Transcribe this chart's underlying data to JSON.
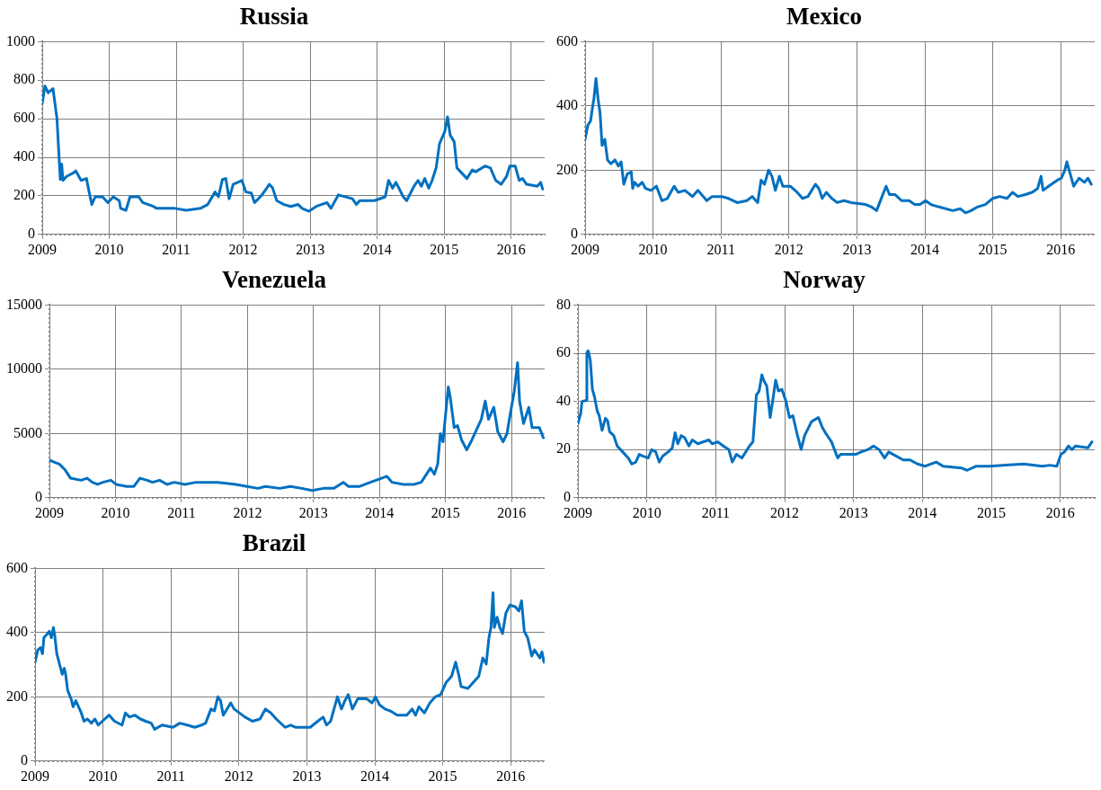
{
  "chart_data": [
    {
      "type": "line",
      "title": "Russia",
      "xlim": [
        2009,
        2016.5
      ],
      "xticks": [
        2009,
        2010,
        2011,
        2012,
        2013,
        2014,
        2015,
        2016
      ],
      "ylim": [
        0,
        1000
      ],
      "yticks": [
        0,
        200,
        400,
        600,
        800,
        1000
      ],
      "grid": true,
      "series": [
        {
          "color": "#0070c0",
          "x": [
            2009,
            2009.04,
            2009.09,
            2009.16,
            2009.22,
            2009.24,
            2009.27,
            2009.29,
            2009.31,
            2009.36,
            2009.47,
            2009.5,
            2009.58,
            2009.66,
            2009.7,
            2009.74,
            2009.79,
            2009.9,
            2009.98,
            2010.06,
            2010.15,
            2010.17,
            2010.25,
            2010.31,
            2010.44,
            2010.5,
            2010.66,
            2010.71,
            2010.82,
            2010.98,
            2011.15,
            2011.36,
            2011.47,
            2011.58,
            2011.63,
            2011.69,
            2011.74,
            2011.79,
            2011.85,
            2011.98,
            2012.04,
            2012.12,
            2012.17,
            2012.28,
            2012.39,
            2012.44,
            2012.5,
            2012.61,
            2012.71,
            2012.82,
            2012.88,
            2012.98,
            2013.09,
            2013.25,
            2013.31,
            2013.42,
            2013.63,
            2013.69,
            2013.74,
            2013.96,
            2014.12,
            2014.17,
            2014.23,
            2014.28,
            2014.39,
            2014.44,
            2014.55,
            2014.61,
            2014.66,
            2014.71,
            2014.77,
            2014.82,
            2014.88,
            2014.93,
            2015.01,
            2015.05,
            2015.09,
            2015.15,
            2015.19,
            2015.34,
            2015.42,
            2015.47,
            2015.61,
            2015.69,
            2015.77,
            2015.85,
            2015.93,
            2015.98,
            2016.06,
            2016.12,
            2016.17,
            2016.23,
            2016.39,
            2016.44,
            2016.47
          ],
          "values": [
            680,
            770,
            735,
            757,
            600,
            470,
            285,
            365,
            280,
            300,
            320,
            330,
            280,
            290,
            220,
            155,
            195,
            195,
            165,
            195,
            175,
            135,
            125,
            195,
            195,
            165,
            145,
            135,
            135,
            135,
            125,
            135,
            155,
            220,
            195,
            285,
            290,
            185,
            260,
            280,
            220,
            215,
            165,
            205,
            260,
            240,
            175,
            155,
            145,
            155,
            135,
            120,
            145,
            165,
            135,
            205,
            185,
            155,
            175,
            175,
            195,
            280,
            240,
            270,
            195,
            175,
            250,
            280,
            250,
            290,
            240,
            280,
            345,
            470,
            535,
            610,
            515,
            480,
            345,
            290,
            335,
            325,
            355,
            345,
            280,
            260,
            300,
            355,
            355,
            280,
            290,
            260,
            250,
            270,
            235
          ]
        }
      ]
    },
    {
      "type": "line",
      "title": "Mexico",
      "xlim": [
        2009,
        2016.5
      ],
      "xticks": [
        2009,
        2010,
        2011,
        2012,
        2013,
        2014,
        2015,
        2016
      ],
      "ylim": [
        0,
        600
      ],
      "yticks": [
        0,
        200,
        400,
        600
      ],
      "grid": true,
      "series": [
        {
          "color": "#0070c0",
          "x": [
            2009,
            2009.04,
            2009.08,
            2009.11,
            2009.13,
            2009.16,
            2009.19,
            2009.22,
            2009.25,
            2009.29,
            2009.33,
            2009.38,
            2009.44,
            2009.49,
            2009.53,
            2009.57,
            2009.62,
            2009.68,
            2009.7,
            2009.73,
            2009.78,
            2009.84,
            2009.89,
            2009.97,
            2010.05,
            2010.13,
            2010.21,
            2010.31,
            2010.37,
            2010.47,
            2010.58,
            2010.66,
            2010.74,
            2010.79,
            2010.87,
            2011.01,
            2011.11,
            2011.24,
            2011.38,
            2011.46,
            2011.54,
            2011.59,
            2011.64,
            2011.7,
            2011.75,
            2011.8,
            2011.86,
            2011.91,
            2012.02,
            2012.12,
            2012.2,
            2012.28,
            2012.39,
            2012.44,
            2012.49,
            2012.55,
            2012.63,
            2012.71,
            2012.81,
            2012.92,
            2013.13,
            2013.21,
            2013.29,
            2013.37,
            2013.43,
            2013.48,
            2013.56,
            2013.66,
            2013.77,
            2013.85,
            2013.93,
            2014.01,
            2014.09,
            2014.2,
            2014.41,
            2014.52,
            2014.6,
            2014.68,
            2014.78,
            2014.89,
            2015,
            2015.1,
            2015.21,
            2015.29,
            2015.37,
            2015.48,
            2015.58,
            2015.66,
            2015.71,
            2015.74,
            2015.82,
            2015.95,
            2016.01,
            2016.06,
            2016.09,
            2016.14,
            2016.19,
            2016.27,
            2016.35,
            2016.4,
            2016.45
          ],
          "values": [
            296,
            340,
            353,
            397,
            423,
            486,
            423,
            378,
            277,
            296,
            232,
            220,
            232,
            213,
            226,
            156,
            188,
            194,
            143,
            162,
            150,
            162,
            143,
            137,
            150,
            105,
            112,
            150,
            131,
            137,
            118,
            137,
            118,
            105,
            118,
            118,
            112,
            99,
            105,
            118,
            99,
            169,
            156,
            200,
            181,
            137,
            181,
            150,
            150,
            131,
            112,
            118,
            156,
            143,
            112,
            131,
            112,
            99,
            105,
            99,
            93,
            86,
            74,
            118,
            150,
            124,
            124,
            105,
            105,
            93,
            93,
            105,
            93,
            86,
            74,
            80,
            67,
            74,
            86,
            93,
            112,
            118,
            112,
            131,
            118,
            124,
            131,
            143,
            181,
            137,
            150,
            169,
            175,
            200,
            226,
            188,
            150,
            175,
            162,
            175,
            156
          ]
        }
      ]
    },
    {
      "type": "line",
      "title": "Venezuela",
      "xlim": [
        2009,
        2016.5
      ],
      "xticks": [
        2009,
        2010,
        2011,
        2012,
        2013,
        2014,
        2015,
        2016
      ],
      "ylim": [
        0,
        15000
      ],
      "yticks": [
        0,
        5000,
        10000,
        15000
      ],
      "grid": true,
      "series": [
        {
          "color": "#0070c0",
          "x": [
            2009,
            2009.07,
            2009.15,
            2009.24,
            2009.32,
            2009.48,
            2009.57,
            2009.65,
            2009.73,
            2009.81,
            2009.93,
            2010.01,
            2010.17,
            2010.28,
            2010.37,
            2010.48,
            2010.56,
            2010.67,
            2010.78,
            2010.89,
            2011.05,
            2011.22,
            2011.55,
            2011.82,
            2011.99,
            2012.16,
            2012.27,
            2012.49,
            2012.65,
            2012.82,
            2012.98,
            2013.15,
            2013.31,
            2013.45,
            2013.53,
            2013.7,
            2013.86,
            2014.03,
            2014.11,
            2014.19,
            2014.36,
            2014.52,
            2014.63,
            2014.69,
            2014.77,
            2014.83,
            2014.88,
            2014.92,
            2014.96,
            2015.04,
            2015.07,
            2015.13,
            2015.18,
            2015.24,
            2015.32,
            2015.4,
            2015.54,
            2015.6,
            2015.65,
            2015.73,
            2015.79,
            2015.87,
            2015.93,
            2015.97,
            2016.04,
            2016.09,
            2016.12,
            2016.18,
            2016.26,
            2016.31,
            2016.42,
            2016.48
          ],
          "values": [
            2940,
            2780,
            2620,
            2150,
            1520,
            1360,
            1520,
            1200,
            1040,
            1200,
            1360,
            1040,
            880,
            880,
            1520,
            1360,
            1200,
            1360,
            1040,
            1200,
            1040,
            1200,
            1200,
            1040,
            880,
            730,
            880,
            730,
            880,
            730,
            570,
            730,
            730,
            1200,
            880,
            880,
            1200,
            1520,
            1670,
            1200,
            1040,
            1040,
            1200,
            1670,
            2300,
            1830,
            2620,
            4990,
            4360,
            8620,
            7830,
            5460,
            5620,
            4520,
            3730,
            4520,
            6100,
            7520,
            6100,
            7040,
            5150,
            4360,
            4990,
            6250,
            8300,
            10520,
            7520,
            5780,
            7040,
            5460,
            5460,
            4670
          ]
        }
      ]
    },
    {
      "type": "line",
      "title": "Norway",
      "xlim": [
        2009,
        2016.5
      ],
      "xticks": [
        2009,
        2010,
        2011,
        2012,
        2013,
        2014,
        2015,
        2016
      ],
      "ylim": [
        0,
        80
      ],
      "yticks": [
        0,
        20,
        40,
        60,
        80
      ],
      "grid": true,
      "series": [
        {
          "color": "#0070c0",
          "x": [
            2009,
            2009.04,
            2009.06,
            2009.12,
            2009.13,
            2009.15,
            2009.18,
            2009.21,
            2009.24,
            2009.28,
            2009.31,
            2009.35,
            2009.4,
            2009.43,
            2009.46,
            2009.52,
            2009.57,
            2009.65,
            2009.73,
            2009.78,
            2009.84,
            2009.89,
            2009.94,
            2010.02,
            2010.07,
            2010.13,
            2010.18,
            2010.23,
            2010.31,
            2010.37,
            2010.41,
            2010.45,
            2010.5,
            2010.55,
            2010.61,
            2010.66,
            2010.74,
            2010.9,
            2010.95,
            2011.03,
            2011.11,
            2011.19,
            2011.24,
            2011.3,
            2011.38,
            2011.49,
            2011.54,
            2011.59,
            2011.63,
            2011.67,
            2011.7,
            2011.74,
            2011.79,
            2011.83,
            2011.87,
            2011.91,
            2011.96,
            2012.02,
            2012.07,
            2012.12,
            2012.18,
            2012.24,
            2012.29,
            2012.39,
            2012.49,
            2012.55,
            2012.6,
            2012.68,
            2012.77,
            2012.81,
            2013.03,
            2013.11,
            2013.21,
            2013.29,
            2013.37,
            2013.45,
            2013.51,
            2013.72,
            2013.82,
            2013.93,
            2014.04,
            2014.2,
            2014.3,
            2014.57,
            2014.65,
            2014.78,
            2014.97,
            2015.21,
            2015.47,
            2015.74,
            2015.85,
            2015.95,
            2016.01,
            2016.06,
            2016.12,
            2016.17,
            2016.22,
            2016.4,
            2016.46
          ],
          "values": [
            30.8,
            35,
            40,
            40.4,
            60.3,
            61,
            57,
            45,
            42,
            36,
            34,
            28,
            33,
            32,
            27.4,
            25.8,
            21.5,
            19,
            16.5,
            14,
            14.8,
            18,
            17.3,
            16.5,
            20,
            19,
            14.8,
            17.3,
            19,
            20.7,
            27,
            22.4,
            25.8,
            24.9,
            21.5,
            24,
            22.4,
            24,
            22.4,
            23.2,
            21.5,
            20,
            14.8,
            18,
            16.5,
            21.5,
            23.2,
            42.6,
            44.3,
            51,
            48.5,
            46.5,
            33.3,
            40.9,
            48.8,
            44.3,
            45,
            40,
            33.3,
            34,
            26.6,
            20,
            25.8,
            31.6,
            33.3,
            29,
            26.6,
            23.2,
            16.5,
            18,
            18,
            19,
            20,
            21.5,
            20,
            16.5,
            19,
            15.7,
            15.7,
            14,
            13.1,
            14.8,
            13.1,
            12.3,
            11.4,
            13.1,
            13.1,
            13.5,
            14,
            13.1,
            13.5,
            13.1,
            18,
            19,
            21.5,
            20,
            21.5,
            20.7,
            23.2
          ]
        }
      ]
    },
    {
      "type": "line",
      "title": "Brazil",
      "xlim": [
        2009,
        2016.5
      ],
      "xticks": [
        2009,
        2010,
        2011,
        2012,
        2013,
        2014,
        2015,
        2016
      ],
      "ylim": [
        0,
        600
      ],
      "yticks": [
        0,
        200,
        400,
        600
      ],
      "grid": true,
      "series": [
        {
          "color": "#0070c0",
          "x": [
            2009,
            2009.04,
            2009.08,
            2009.11,
            2009.13,
            2009.16,
            2009.21,
            2009.24,
            2009.27,
            2009.29,
            2009.32,
            2009.36,
            2009.4,
            2009.43,
            2009.45,
            2009.48,
            2009.53,
            2009.56,
            2009.6,
            2009.68,
            2009.72,
            2009.77,
            2009.83,
            2009.88,
            2009.93,
            2009.99,
            2010.09,
            2010.17,
            2010.28,
            2010.33,
            2010.39,
            2010.47,
            2010.55,
            2010.63,
            2010.71,
            2010.76,
            2010.87,
            2011.03,
            2011.13,
            2011.24,
            2011.35,
            2011.45,
            2011.51,
            2011.59,
            2011.64,
            2011.69,
            2011.73,
            2011.77,
            2011.88,
            2011.93,
            2012.09,
            2012.2,
            2012.31,
            2012.39,
            2012.47,
            2012.55,
            2012.68,
            2012.76,
            2012.84,
            2013.05,
            2013.16,
            2013.24,
            2013.29,
            2013.35,
            2013.4,
            2013.45,
            2013.51,
            2013.56,
            2013.61,
            2013.67,
            2013.75,
            2013.88,
            2013.96,
            2014.01,
            2014.07,
            2014.15,
            2014.23,
            2014.33,
            2014.47,
            2014.55,
            2014.6,
            2014.65,
            2014.73,
            2014.81,
            2014.89,
            2014.97,
            2015.05,
            2015.13,
            2015.19,
            2015.24,
            2015.27,
            2015.37,
            2015.45,
            2015.53,
            2015.59,
            2015.64,
            2015.68,
            2015.71,
            2015.74,
            2015.76,
            2015.8,
            2015.84,
            2015.88,
            2015.93,
            2015.99,
            2016.07,
            2016.12,
            2016.16,
            2016.2,
            2016.25,
            2016.31,
            2016.35,
            2016.43,
            2016.46,
            2016.49
          ],
          "values": [
            308,
            346,
            353,
            334,
            384,
            391,
            404,
            384,
            416,
            391,
            334,
            302,
            270,
            289,
            270,
            220,
            194,
            169,
            188,
            150,
            124,
            131,
            118,
            131,
            112,
            124,
            143,
            124,
            112,
            150,
            137,
            143,
            131,
            124,
            118,
            99,
            112,
            105,
            118,
            112,
            105,
            112,
            118,
            162,
            156,
            200,
            188,
            143,
            181,
            162,
            137,
            124,
            131,
            162,
            150,
            131,
            105,
            112,
            105,
            105,
            124,
            137,
            112,
            124,
            162,
            200,
            162,
            188,
            207,
            162,
            194,
            194,
            181,
            200,
            175,
            162,
            156,
            143,
            143,
            162,
            143,
            169,
            150,
            181,
            200,
            207,
            245,
            264,
            308,
            264,
            232,
            226,
            245,
            264,
            321,
            302,
            384,
            416,
            524,
            416,
            448,
            416,
            397,
            461,
            486,
            480,
            467,
            499,
            404,
            384,
            327,
            346,
            321,
            340,
            308
          ]
        }
      ]
    }
  ]
}
